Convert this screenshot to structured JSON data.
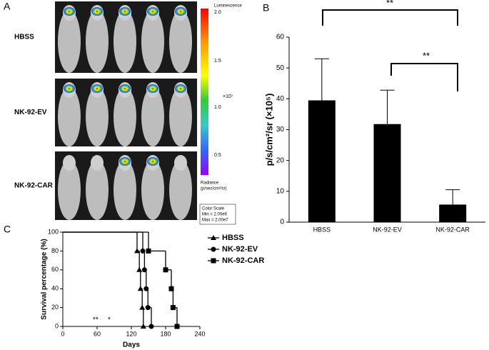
{
  "panel_labels": [
    "A",
    "B",
    "C"
  ],
  "panel_a": {
    "rows": [
      "HBSS",
      "NK-92-EV",
      "NK-92-CAR"
    ],
    "colorbar": {
      "title": "Luminescence",
      "ticks": [
        "2.0",
        "1.5",
        "1.0",
        "0.5"
      ],
      "multiplier": "×10⁷",
      "unit_title": "Radiance",
      "unit": "(p/sec/cm²/sr)",
      "scale_box": [
        "Color Scale",
        "Min = 2.00e6",
        "Max = 2.00e7"
      ]
    }
  },
  "chart_data": [
    {
      "type": "bar",
      "y_label": "p/s/cm²/sr (×10⁵)",
      "categories": [
        "HBSS",
        "NK-92-EV",
        "NK-92-CAR"
      ],
      "values": [
        39.5,
        31.8,
        5.7
      ],
      "errors": [
        13.5,
        11,
        4.8
      ],
      "color": "#000000",
      "ylim": [
        0,
        60
      ],
      "yticks": [
        0,
        10,
        20,
        30,
        40,
        50,
        60
      ],
      "annotations": [
        "**",
        "**"
      ]
    },
    {
      "type": "survival",
      "x_label": "Days",
      "y_label": "Survival percentage (%)",
      "xlim": [
        0,
        240
      ],
      "xticks": [
        0,
        60,
        120,
        180,
        240
      ],
      "ylim": [
        0,
        100
      ],
      "yticks": [
        0,
        20,
        40,
        60,
        80,
        100
      ],
      "series": [
        {
          "name": "HBSS",
          "marker": "triangle",
          "color": "#000000",
          "x": [
            0,
            130,
            134,
            136,
            139,
            141
          ],
          "values": [
            100,
            80,
            60,
            40,
            20,
            0
          ]
        },
        {
          "name": "NK-92-EV",
          "marker": "circle",
          "color": "#000000",
          "x": [
            0,
            140,
            143,
            146,
            149,
            155
          ],
          "values": [
            100,
            80,
            60,
            40,
            20,
            0
          ]
        },
        {
          "name": "NK-92-CAR",
          "marker": "square",
          "color": "#000000",
          "x": [
            0,
            150,
            180,
            190,
            193,
            200
          ],
          "values": [
            100,
            80,
            60,
            40,
            20,
            0
          ]
        }
      ],
      "annotations": [
        "**",
        "*"
      ]
    }
  ]
}
